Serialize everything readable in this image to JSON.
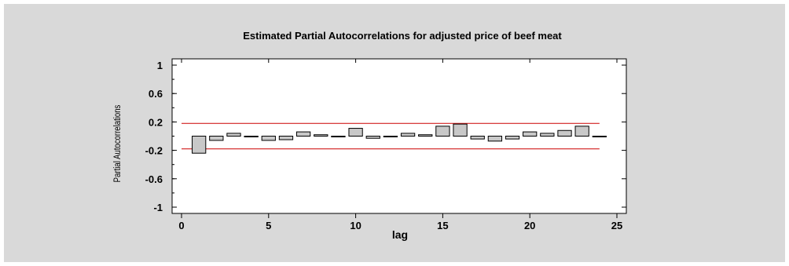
{
  "chart_data": {
    "type": "bar",
    "title": "Estimated Partial Autocorrelations for adjusted price of beef meat",
    "xlabel": "lag",
    "ylabel": "Partial Autocorrelations",
    "xlim": [
      0,
      25
    ],
    "ylim": [
      -1,
      1
    ],
    "x_ticks": [
      0,
      5,
      10,
      15,
      20,
      25
    ],
    "y_ticks": [
      1,
      0.6,
      0.2,
      -0.2,
      -0.6,
      -1
    ],
    "y_tick_labels": [
      "1",
      "0.6",
      "0.2",
      "-0.2",
      "-0.6",
      "-1"
    ],
    "lags": [
      1,
      2,
      3,
      4,
      5,
      6,
      7,
      8,
      9,
      10,
      11,
      12,
      13,
      14,
      15,
      16,
      17,
      18,
      19,
      20,
      21,
      22,
      23,
      24
    ],
    "values": [
      -0.24,
      -0.06,
      0.04,
      -0.01,
      -0.06,
      -0.05,
      0.06,
      0.02,
      -0.01,
      0.11,
      -0.03,
      -0.01,
      0.04,
      0.02,
      0.14,
      0.17,
      -0.04,
      -0.07,
      -0.04,
      0.06,
      0.04,
      0.08,
      0.14,
      -0.01
    ],
    "confidence_limits": {
      "upper": 0.18,
      "lower": -0.18,
      "color": "#cc0000"
    },
    "bar_color": "#c8c8c8",
    "grid": false
  }
}
